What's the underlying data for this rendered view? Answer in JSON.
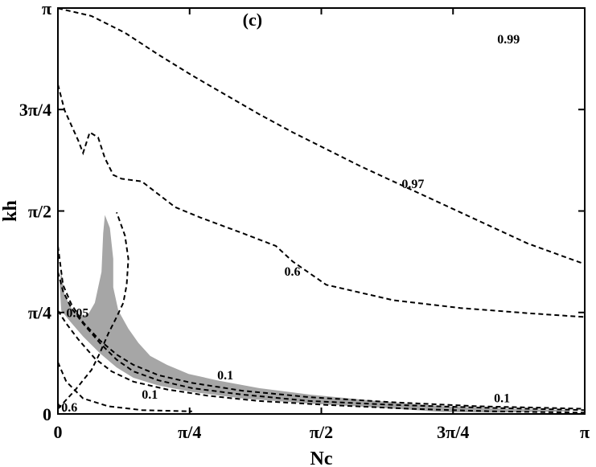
{
  "chart_data": {
    "type": "contour",
    "title": "",
    "panel_label": "(c)",
    "xlabel": "Nc",
    "ylabel": "kh",
    "xlim": [
      0,
      3.14159
    ],
    "ylim": [
      0,
      3.14159
    ],
    "xticks": [
      {
        "value": 0,
        "label": "0"
      },
      {
        "value": 0.7854,
        "label": "π/4"
      },
      {
        "value": 1.5708,
        "label": "π/2"
      },
      {
        "value": 2.3562,
        "label": "3π/4"
      },
      {
        "value": 3.14159,
        "label": "π"
      }
    ],
    "yticks": [
      {
        "value": 0,
        "label": "0"
      },
      {
        "value": 0.7854,
        "label": "π/4"
      },
      {
        "value": 1.5708,
        "label": "π/2"
      },
      {
        "value": 2.3562,
        "label": "3π/4"
      },
      {
        "value": 3.14159,
        "label": "π"
      }
    ],
    "fill_color": "#a6a6a6",
    "line_color": "#000000",
    "shaded_region": {
      "level": 0.05,
      "outline": [
        [
          0.02,
          1.1
        ],
        [
          0.04,
          0.92
        ],
        [
          0.08,
          0.82
        ],
        [
          0.13,
          0.76
        ],
        [
          0.18,
          0.77
        ],
        [
          0.22,
          0.86
        ],
        [
          0.26,
          1.1
        ],
        [
          0.27,
          1.4
        ],
        [
          0.28,
          1.54
        ],
        [
          0.31,
          1.44
        ],
        [
          0.33,
          1.2
        ],
        [
          0.33,
          0.98
        ],
        [
          0.36,
          0.8
        ],
        [
          0.42,
          0.66
        ],
        [
          0.48,
          0.55
        ],
        [
          0.55,
          0.45
        ],
        [
          0.65,
          0.38
        ],
        [
          0.78,
          0.31
        ],
        [
          0.95,
          0.26
        ],
        [
          1.2,
          0.2
        ],
        [
          1.5,
          0.15
        ],
        [
          1.9,
          0.1
        ],
        [
          2.3,
          0.06
        ],
        [
          2.7,
          0.04
        ],
        [
          3.05,
          0.03
        ],
        [
          3.05,
          0.02
        ],
        [
          2.6,
          0.01
        ],
        [
          2.3,
          0.015
        ],
        [
          1.9,
          0.05
        ],
        [
          1.5,
          0.08
        ],
        [
          1.1,
          0.12
        ],
        [
          0.8,
          0.17
        ],
        [
          0.6,
          0.22
        ],
        [
          0.45,
          0.28
        ],
        [
          0.35,
          0.36
        ],
        [
          0.25,
          0.47
        ],
        [
          0.15,
          0.6
        ],
        [
          0.07,
          0.72
        ],
        [
          0.02,
          0.8
        ],
        [
          0.01,
          1.0
        ]
      ]
    },
    "series": [
      {
        "name": "0.99",
        "label_at": [
          2.62,
          2.9
        ],
        "points": [
          [
            0.0,
            3.14
          ],
          [
            0.2,
            3.08
          ],
          [
            0.4,
            2.95
          ],
          [
            0.6,
            2.78
          ],
          [
            0.8,
            2.62
          ],
          [
            1.0,
            2.47
          ],
          [
            1.2,
            2.32
          ],
          [
            1.4,
            2.18
          ],
          [
            1.6,
            2.05
          ],
          [
            1.8,
            1.92
          ],
          [
            2.0,
            1.8
          ],
          [
            2.2,
            1.68
          ],
          [
            2.4,
            1.56
          ],
          [
            2.6,
            1.44
          ],
          [
            2.8,
            1.32
          ],
          [
            3.14,
            1.16
          ]
        ]
      },
      {
        "name": "0.97",
        "label_at": [
          2.05,
          1.78
        ],
        "points": [
          [
            0.0,
            2.55
          ],
          [
            0.04,
            2.35
          ],
          [
            0.12,
            2.12
          ],
          [
            0.15,
            2.02
          ],
          [
            0.19,
            2.18
          ],
          [
            0.24,
            2.14
          ],
          [
            0.28,
            1.98
          ],
          [
            0.33,
            1.85
          ],
          [
            0.38,
            1.82
          ],
          [
            0.5,
            1.8
          ],
          [
            0.7,
            1.6
          ],
          [
            0.85,
            1.52
          ],
          [
            1.1,
            1.4
          ],
          [
            1.3,
            1.3
          ],
          [
            1.4,
            1.18
          ],
          [
            1.6,
            1.0
          ],
          [
            2.0,
            0.88
          ],
          [
            2.4,
            0.82
          ],
          [
            2.8,
            0.78
          ],
          [
            3.14,
            0.75
          ]
        ]
      },
      {
        "name": "0.6",
        "label_at": [
          1.35,
          1.1
        ],
        "points": [
          [
            0.0,
            0.04
          ],
          [
            0.1,
            0.18
          ],
          [
            0.2,
            0.34
          ],
          [
            0.25,
            0.47
          ],
          [
            0.3,
            0.62
          ],
          [
            0.35,
            0.75
          ],
          [
            0.39,
            0.86
          ],
          [
            0.41,
            1.0
          ],
          [
            0.42,
            1.2
          ],
          [
            0.4,
            1.38
          ],
          [
            0.35,
            1.56
          ]
        ]
      },
      {
        "name": "0.1",
        "label_at": [
          0.95,
          0.3
        ],
        "points": [
          [
            0.0,
            1.3
          ],
          [
            0.03,
            1.0
          ],
          [
            0.08,
            0.85
          ],
          [
            0.15,
            0.71
          ],
          [
            0.25,
            0.57
          ],
          [
            0.35,
            0.46
          ],
          [
            0.45,
            0.38
          ],
          [
            0.6,
            0.3
          ],
          [
            0.8,
            0.24
          ],
          [
            1.1,
            0.18
          ],
          [
            1.5,
            0.13
          ],
          [
            2.0,
            0.09
          ],
          [
            2.5,
            0.06
          ],
          [
            3.14,
            0.04
          ]
        ]
      },
      {
        "name": "0.1",
        "label_at": [
          2.6,
          0.12
        ],
        "points": [
          [
            0.0,
            1.1
          ],
          [
            0.03,
            0.95
          ],
          [
            0.08,
            0.82
          ],
          [
            0.15,
            0.7
          ],
          [
            0.25,
            0.55
          ],
          [
            0.35,
            0.42
          ],
          [
            0.45,
            0.33
          ],
          [
            0.6,
            0.26
          ],
          [
            0.8,
            0.2
          ],
          [
            1.1,
            0.15
          ],
          [
            1.5,
            0.1
          ],
          [
            2.0,
            0.07
          ],
          [
            2.5,
            0.05
          ],
          [
            3.14,
            0.03
          ]
        ]
      },
      {
        "name": "0.05",
        "label_at": [
          0.05,
          0.78
        ],
        "points": [
          [
            0.0,
            0.8
          ],
          [
            0.05,
            0.7
          ],
          [
            0.12,
            0.58
          ],
          [
            0.22,
            0.43
          ],
          [
            0.32,
            0.33
          ],
          [
            0.45,
            0.25
          ],
          [
            0.65,
            0.19
          ],
          [
            0.9,
            0.14
          ],
          [
            1.2,
            0.1
          ],
          [
            1.6,
            0.07
          ],
          [
            2.1,
            0.04
          ],
          [
            2.6,
            0.02
          ],
          [
            3.14,
            0.01
          ]
        ]
      },
      {
        "name": "0.1",
        "label_at": [
          0.5,
          0.15
        ],
        "points": [
          [
            0.0,
            0.4
          ],
          [
            0.05,
            0.25
          ],
          [
            0.15,
            0.12
          ],
          [
            0.3,
            0.06
          ],
          [
            0.5,
            0.03
          ],
          [
            0.8,
            0.02
          ]
        ]
      },
      {
        "name": "0.6",
        "label_at": [
          0.02,
          0.05
        ],
        "points": [
          [
            0.0,
            0.08
          ],
          [
            0.02,
            0.04
          ],
          [
            0.04,
            0.02
          ]
        ]
      }
    ]
  }
}
